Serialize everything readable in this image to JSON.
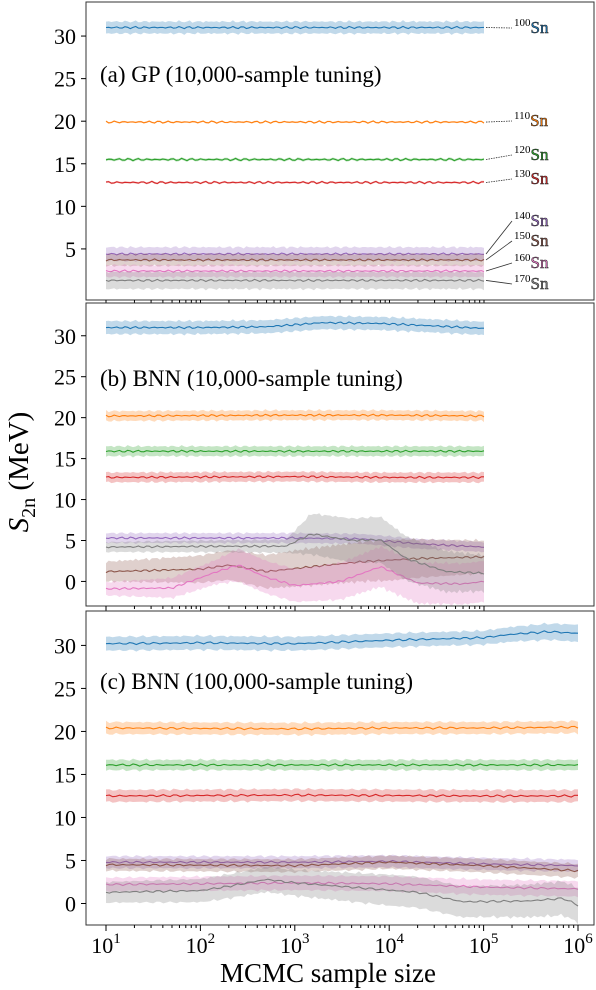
{
  "figure": {
    "ylabel_main": "S",
    "ylabel_sub": "2n",
    "ylabel_unit": " (MeV)",
    "xlabel": "MCMC sample size"
  },
  "colors": {
    "100Sn": "#1f77b4",
    "110Sn": "#ff7f0e",
    "120Sn": "#2ca02c",
    "130Sn": "#d62728",
    "140Sn": "#9467bd",
    "150Sn": "#8c564b",
    "160Sn": "#e377c2",
    "170Sn": "#7f7f7f"
  },
  "chart_data": [
    {
      "type": "line",
      "title": "(a) GP (10,000-sample tuning)",
      "xscale": "log",
      "xlim": [
        10,
        100000
      ],
      "ylim": [
        -1,
        34
      ],
      "yticks": [
        5,
        10,
        15,
        20,
        25,
        30
      ],
      "xticks": [],
      "legend": "right-edge labels with leader lines",
      "series": [
        {
          "name": "100Sn",
          "mass": "100",
          "sym": "Sn",
          "mean": [
            [
              10,
              31.0
            ],
            [
              100,
              31.0
            ],
            [
              1000,
              31.0
            ],
            [
              10000,
              31.0
            ],
            [
              100000,
              31.0
            ]
          ],
          "band": [
            [
              10,
              0.7
            ],
            [
              100000,
              0.7
            ]
          ]
        },
        {
          "name": "110Sn",
          "mass": "110",
          "sym": "Sn",
          "mean": [
            [
              10,
              19.9
            ],
            [
              100000,
              19.9
            ]
          ],
          "band": [
            [
              10,
              0.1
            ],
            [
              100000,
              0.1
            ]
          ]
        },
        {
          "name": "120Sn",
          "mass": "120",
          "sym": "Sn",
          "mean": [
            [
              10,
              15.5
            ],
            [
              100000,
              15.5
            ]
          ],
          "band": [
            [
              10,
              0.15
            ],
            [
              100000,
              0.15
            ]
          ]
        },
        {
          "name": "130Sn",
          "mass": "130",
          "sym": "Sn",
          "mean": [
            [
              10,
              12.8
            ],
            [
              100000,
              12.8
            ]
          ],
          "band": [
            [
              10,
              0.12
            ],
            [
              100000,
              0.12
            ]
          ]
        },
        {
          "name": "140Sn",
          "mass": "140",
          "sym": "Sn",
          "mean": [
            [
              10,
              4.4
            ],
            [
              100000,
              4.4
            ]
          ],
          "band": [
            [
              10,
              0.8
            ],
            [
              100000,
              0.8
            ]
          ]
        },
        {
          "name": "150Sn",
          "mass": "150",
          "sym": "Sn",
          "mean": [
            [
              10,
              3.7
            ],
            [
              100000,
              3.7
            ]
          ],
          "band": [
            [
              10,
              0.7
            ],
            [
              100000,
              0.7
            ]
          ]
        },
        {
          "name": "160Sn",
          "mass": "160",
          "sym": "Sn",
          "mean": [
            [
              10,
              2.4
            ],
            [
              100000,
              2.4
            ]
          ],
          "band": [
            [
              10,
              0.7
            ],
            [
              100000,
              0.7
            ]
          ]
        },
        {
          "name": "170Sn",
          "mass": "170",
          "sym": "Sn",
          "mean": [
            [
              10,
              1.3
            ],
            [
              100000,
              1.3
            ]
          ],
          "band": [
            [
              10,
              1.0
            ],
            [
              100000,
              1.0
            ]
          ]
        }
      ]
    },
    {
      "type": "line",
      "title": "(b) BNN (10,000-sample tuning)",
      "xscale": "log",
      "xlim": [
        10,
        100000
      ],
      "ylim": [
        -3,
        34
      ],
      "yticks": [
        0,
        5,
        10,
        15,
        20,
        25,
        30
      ],
      "xticks": [],
      "series": [
        {
          "name": "100Sn",
          "mean": [
            [
              10,
              31.0
            ],
            [
              100,
              31.0
            ],
            [
              500,
              31.1
            ],
            [
              2000,
              31.6
            ],
            [
              8000,
              31.5
            ],
            [
              30000,
              31.2
            ],
            [
              100000,
              30.9
            ]
          ],
          "band": [
            [
              10,
              0.8
            ],
            [
              100000,
              0.8
            ]
          ]
        },
        {
          "name": "110Sn",
          "mean": [
            [
              10,
              20.2
            ],
            [
              1000,
              20.3
            ],
            [
              10000,
              20.3
            ],
            [
              100000,
              20.2
            ]
          ],
          "band": [
            [
              10,
              0.6
            ],
            [
              100000,
              0.6
            ]
          ]
        },
        {
          "name": "120Sn",
          "mean": [
            [
              10,
              15.9
            ],
            [
              1000,
              15.9
            ],
            [
              10000,
              15.9
            ],
            [
              100000,
              15.9
            ]
          ],
          "band": [
            [
              10,
              0.6
            ],
            [
              100000,
              0.6
            ]
          ]
        },
        {
          "name": "130Sn",
          "mean": [
            [
              10,
              12.7
            ],
            [
              1000,
              12.8
            ],
            [
              10000,
              12.7
            ],
            [
              100000,
              12.7
            ]
          ],
          "band": [
            [
              10,
              0.6
            ],
            [
              100000,
              0.6
            ]
          ]
        },
        {
          "name": "140Sn",
          "mean": [
            [
              10,
              5.3
            ],
            [
              100,
              5.3
            ],
            [
              1000,
              5.3
            ],
            [
              5000,
              5.2
            ],
            [
              20000,
              4.6
            ],
            [
              100000,
              4.2
            ]
          ],
          "band": [
            [
              10,
              0.6
            ],
            [
              100000,
              0.6
            ]
          ]
        },
        {
          "name": "150Sn",
          "mean": [
            [
              10,
              1.2
            ],
            [
              100,
              1.5
            ],
            [
              200,
              2.0
            ],
            [
              500,
              1.2
            ],
            [
              1500,
              1.8
            ],
            [
              5000,
              2.4
            ],
            [
              20000,
              2.8
            ],
            [
              100000,
              3.0
            ]
          ],
          "band": [
            [
              10,
              1.2
            ],
            [
              200,
              1.8
            ],
            [
              1000,
              2.2
            ],
            [
              10000,
              2.5
            ],
            [
              100000,
              2.0
            ]
          ]
        },
        {
          "name": "160Sn",
          "mean": [
            [
              10,
              -0.9
            ],
            [
              50,
              -0.8
            ],
            [
              150,
              1.2
            ],
            [
              250,
              2.0
            ],
            [
              500,
              0.5
            ],
            [
              1000,
              -0.5
            ],
            [
              3000,
              0.0
            ],
            [
              8000,
              1.8
            ],
            [
              20000,
              -0.2
            ],
            [
              60000,
              -0.3
            ],
            [
              100000,
              0.0
            ]
          ],
          "band": [
            [
              10,
              0.8
            ],
            [
              150,
              1.5
            ],
            [
              250,
              2.0
            ],
            [
              1000,
              2.0
            ],
            [
              10000,
              2.5
            ],
            [
              100000,
              2.5
            ]
          ]
        },
        {
          "name": "170Sn",
          "mean": [
            [
              10,
              4.2
            ],
            [
              200,
              4.3
            ],
            [
              800,
              4.3
            ],
            [
              1500,
              5.8
            ],
            [
              4000,
              5.0
            ],
            [
              8000,
              5.1
            ],
            [
              15000,
              2.8
            ],
            [
              40000,
              1.2
            ],
            [
              100000,
              1.0
            ]
          ],
          "band": [
            [
              10,
              0.6
            ],
            [
              800,
              0.8
            ],
            [
              1500,
              2.5
            ],
            [
              8000,
              2.8
            ],
            [
              40000,
              2.5
            ],
            [
              100000,
              2.2
            ]
          ]
        }
      ]
    },
    {
      "type": "line",
      "title": "(c) BNN (100,000-sample tuning)",
      "xscale": "log",
      "xlim": [
        10,
        1000000
      ],
      "ylim": [
        -2.5,
        34
      ],
      "yticks": [
        0,
        5,
        10,
        15,
        20,
        25,
        30
      ],
      "xticks": [
        10,
        100,
        1000,
        10000,
        100000,
        1000000
      ],
      "series": [
        {
          "name": "100Sn",
          "mean": [
            [
              10,
              30.2
            ],
            [
              100,
              30.3
            ],
            [
              1000,
              30.2
            ],
            [
              10000,
              30.6
            ],
            [
              100000,
              30.9
            ],
            [
              200000,
              31.3
            ],
            [
              500000,
              31.6
            ],
            [
              1000000,
              31.4
            ]
          ],
          "band": [
            [
              10,
              0.8
            ],
            [
              100000,
              0.8
            ],
            [
              1000000,
              1.0
            ]
          ]
        },
        {
          "name": "110Sn",
          "mean": [
            [
              10,
              20.4
            ],
            [
              1000,
              20.3
            ],
            [
              10000,
              20.4
            ],
            [
              100000,
              20.4
            ],
            [
              1000000,
              20.5
            ]
          ],
          "band": [
            [
              10,
              0.7
            ],
            [
              1000000,
              0.7
            ]
          ]
        },
        {
          "name": "120Sn",
          "mean": [
            [
              10,
              16.1
            ],
            [
              1000,
              16.1
            ],
            [
              100000,
              16.1
            ],
            [
              1000000,
              16.1
            ]
          ],
          "band": [
            [
              10,
              0.6
            ],
            [
              1000000,
              0.6
            ]
          ]
        },
        {
          "name": "130Sn",
          "mean": [
            [
              10,
              12.5
            ],
            [
              1000,
              12.6
            ],
            [
              100000,
              12.5
            ],
            [
              1000000,
              12.5
            ]
          ],
          "band": [
            [
              10,
              0.7
            ],
            [
              1000000,
              0.7
            ]
          ]
        },
        {
          "name": "140Sn",
          "mean": [
            [
              10,
              4.8
            ],
            [
              1000,
              4.8
            ],
            [
              10000,
              4.9
            ],
            [
              100000,
              4.6
            ],
            [
              1000000,
              4.4
            ]
          ],
          "band": [
            [
              10,
              0.7
            ],
            [
              1000000,
              0.7
            ]
          ]
        },
        {
          "name": "150Sn",
          "mean": [
            [
              10,
              4.5
            ],
            [
              1000,
              4.4
            ],
            [
              10000,
              4.8
            ],
            [
              100000,
              4.4
            ],
            [
              1000000,
              3.8
            ]
          ],
          "band": [
            [
              10,
              0.7
            ],
            [
              1000000,
              0.8
            ]
          ]
        },
        {
          "name": "160Sn",
          "mean": [
            [
              10,
              2.2
            ],
            [
              1000,
              2.4
            ],
            [
              10000,
              2.3
            ],
            [
              100000,
              1.9
            ],
            [
              1000000,
              1.7
            ]
          ],
          "band": [
            [
              10,
              0.8
            ],
            [
              1000000,
              0.9
            ]
          ]
        },
        {
          "name": "170Sn",
          "mean": [
            [
              10,
              1.3
            ],
            [
              100,
              1.5
            ],
            [
              200,
              2.0
            ],
            [
              500,
              2.8
            ],
            [
              1000,
              2.4
            ],
            [
              3000,
              2.0
            ],
            [
              20000,
              1.3
            ],
            [
              60000,
              0.2
            ],
            [
              300000,
              0.3
            ],
            [
              700000,
              0.6
            ],
            [
              1000000,
              -0.2
            ]
          ],
          "band": [
            [
              10,
              1.2
            ],
            [
              1000,
              1.5
            ],
            [
              10000,
              1.8
            ],
            [
              100000,
              1.8
            ],
            [
              1000000,
              2.0
            ]
          ]
        }
      ]
    }
  ]
}
